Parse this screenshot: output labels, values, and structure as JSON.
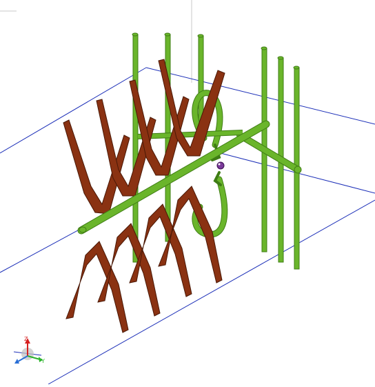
{
  "viewport": {
    "background": "#ffffff",
    "colors": {
      "wire_blue": "#1c2fb8",
      "frame_gray": "#c8c8c8",
      "pipe_green": "#6ab52b",
      "pipe_green_dark": "#3f7d15",
      "blade_brown": "#8a3212",
      "blade_brown_dark": "#4a1806",
      "port_purple": "#7a3a9a"
    },
    "triad": {
      "z_label": "Z",
      "y_label": "Y",
      "x_color": "#2a6fd6",
      "y_color": "#2bb32b",
      "z_color": "#d62020"
    },
    "model": {
      "parts": [
        "wire-bounding-box",
        "support-boom",
        "green-dipole-elements",
        "brown-v-blades",
        "feed-loop",
        "excitation-port"
      ]
    }
  }
}
